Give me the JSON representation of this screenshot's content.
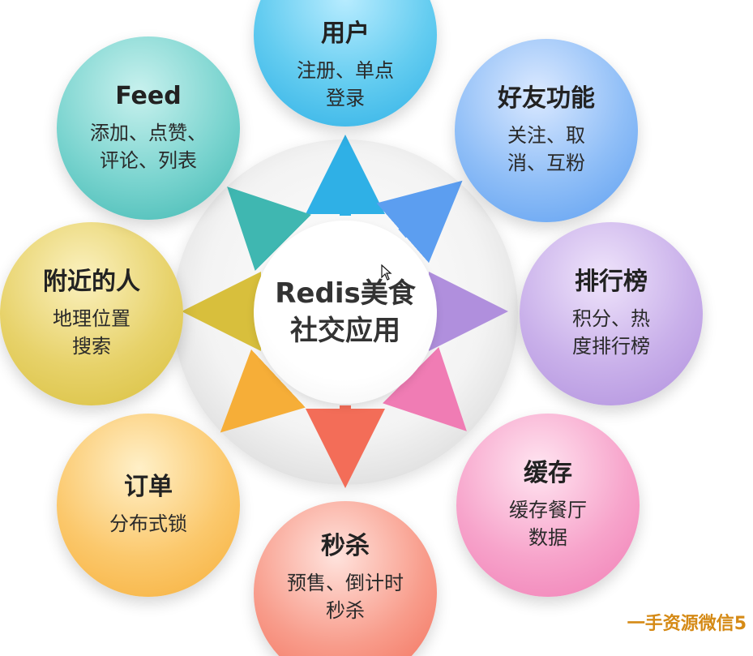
{
  "center": {
    "line1": "Redis美食",
    "line2": "社交应用"
  },
  "nodes": [
    {
      "id": "user",
      "title": "用户",
      "desc": "注册、单点\n登录",
      "color": "#2fb0e6"
    },
    {
      "id": "friend",
      "title": "好友功能",
      "desc": "关注、取\n消、互粉",
      "color": "#5c9ef0"
    },
    {
      "id": "rank",
      "title": "排行榜",
      "desc": "积分、热\n度排行榜",
      "color": "#b08fdd"
    },
    {
      "id": "cache",
      "title": "缓存",
      "desc": "缓存餐厅\n数据",
      "color": "#f07cb4"
    },
    {
      "id": "seckill",
      "title": "秒杀",
      "desc": "预售、倒计时\n秒杀",
      "color": "#f36d58"
    },
    {
      "id": "order",
      "title": "订单",
      "desc": "分布式锁",
      "color": "#f6ae38"
    },
    {
      "id": "nearby",
      "title": "附近的人",
      "desc": "地理位置\n搜索",
      "color": "#d8bf3c"
    },
    {
      "id": "feed",
      "title": "Feed",
      "desc": "添加、点赞、\n评论、列表",
      "color": "#3fb7b1"
    }
  ],
  "watermark": "一手资源微信5"
}
